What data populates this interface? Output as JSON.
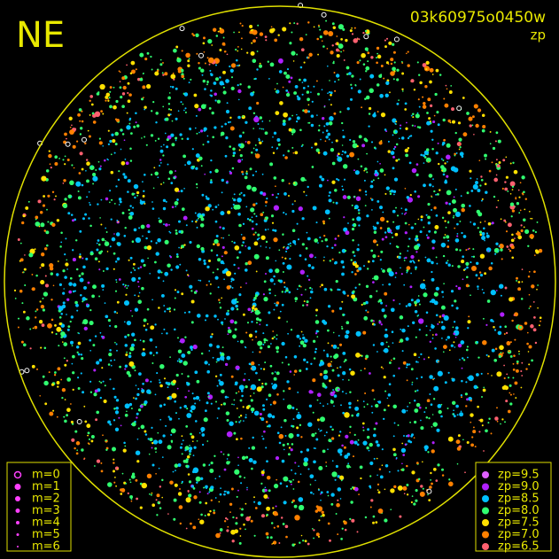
{
  "header": {
    "direction": "NE",
    "frame": "03k60975o0450w",
    "mode": "zp"
  },
  "magnitude_legend": {
    "items": [
      {
        "label": "m=0"
      },
      {
        "label": "m=1"
      },
      {
        "label": "m=2"
      },
      {
        "label": "m=3"
      },
      {
        "label": "m=4"
      },
      {
        "label": "m=5"
      },
      {
        "label": "m=6"
      }
    ]
  },
  "zp_legend": {
    "items": [
      {
        "label": "zp=9.5",
        "color": "#e060ff"
      },
      {
        "label": "zp=9.0",
        "color": "#b020ff"
      },
      {
        "label": "zp=8.5",
        "color": "#00c0ff"
      },
      {
        "label": "zp=8.0",
        "color": "#30ff70"
      },
      {
        "label": "zp=7.5",
        "color": "#ffe000"
      },
      {
        "label": "zp=7.0",
        "color": "#ff8000"
      },
      {
        "label": "zp=6.5",
        "color": "#ff6070"
      }
    ]
  }
}
